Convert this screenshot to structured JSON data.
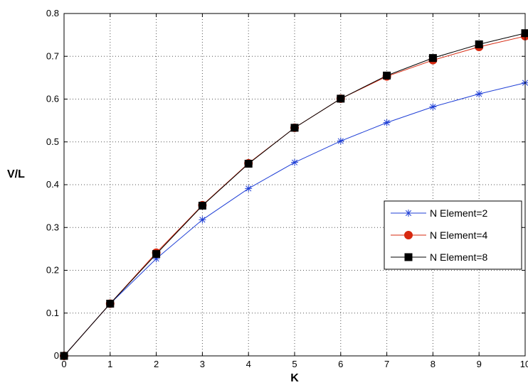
{
  "chart_data": {
    "type": "line",
    "title": "",
    "xlabel": "K",
    "ylabel": "V/L",
    "xlim": [
      0,
      10
    ],
    "ylim": [
      0,
      0.8
    ],
    "xticks": [
      0,
      1,
      2,
      3,
      4,
      5,
      6,
      7,
      8,
      9,
      10
    ],
    "yticks": [
      0,
      0.1,
      0.2,
      0.3,
      0.4,
      0.5,
      0.6,
      0.7,
      0.8
    ],
    "xtick_labels": [
      "0",
      "1",
      "2",
      "3",
      "4",
      "5",
      "6",
      "7",
      "8",
      "9",
      "10"
    ],
    "ytick_labels": [
      "0",
      "0.1",
      "0.2",
      "0.3",
      "0.4",
      "0.5",
      "0.6",
      "0.7",
      "0.8"
    ],
    "grid": true,
    "legend_position": "right",
    "x": [
      0,
      1,
      2,
      3,
      4,
      5,
      6,
      7,
      8,
      9,
      10
    ],
    "series": [
      {
        "name": "N Element=2",
        "values": [
          0,
          0.122,
          0.227,
          0.318,
          0.391,
          0.452,
          0.502,
          0.545,
          0.582,
          0.612,
          0.638
        ],
        "color": "#1f3fd6",
        "marker": "star"
      },
      {
        "name": "N Element=4",
        "values": [
          0,
          0.122,
          0.241,
          0.352,
          0.45,
          0.533,
          0.601,
          0.653,
          0.691,
          0.722,
          0.747
        ],
        "color": "#d7280f",
        "marker": "circle"
      },
      {
        "name": "N Element=8",
        "values": [
          0,
          0.122,
          0.238,
          0.351,
          0.449,
          0.533,
          0.601,
          0.655,
          0.696,
          0.728,
          0.754
        ],
        "color": "#000000",
        "marker": "square"
      }
    ]
  }
}
